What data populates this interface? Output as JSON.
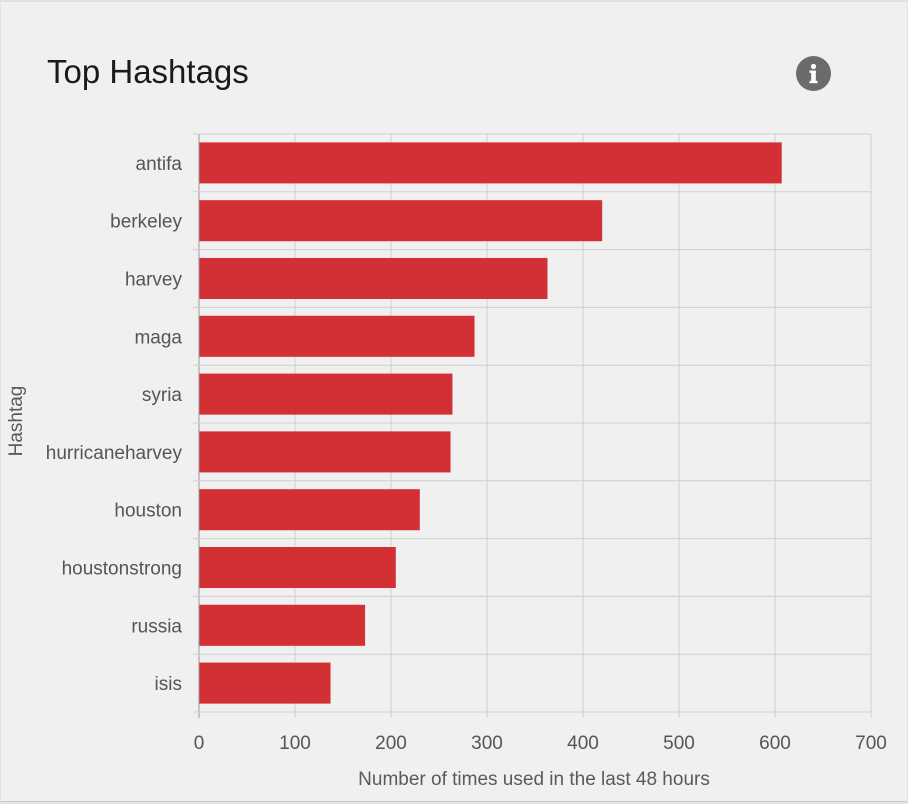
{
  "card": {
    "title": "Top Hashtags",
    "info_icon": "info-icon"
  },
  "chart_data": {
    "type": "bar",
    "orientation": "horizontal",
    "title": "",
    "xlabel": "Number of times used in the last 48 hours",
    "ylabel": "Hashtag",
    "categories": [
      "antifa",
      "berkeley",
      "harvey",
      "maga",
      "syria",
      "hurricaneharvey",
      "houston",
      "houstonstrong",
      "russia",
      "isis"
    ],
    "values": [
      607,
      420,
      363,
      287,
      264,
      262,
      230,
      205,
      173,
      137
    ],
    "xlim": [
      0,
      700
    ],
    "xticks": [
      0,
      100,
      200,
      300,
      400,
      500,
      600,
      700
    ],
    "grid": true,
    "legend": "none",
    "bar_color": "#d23035",
    "grid_color": "#cfcfcf"
  }
}
